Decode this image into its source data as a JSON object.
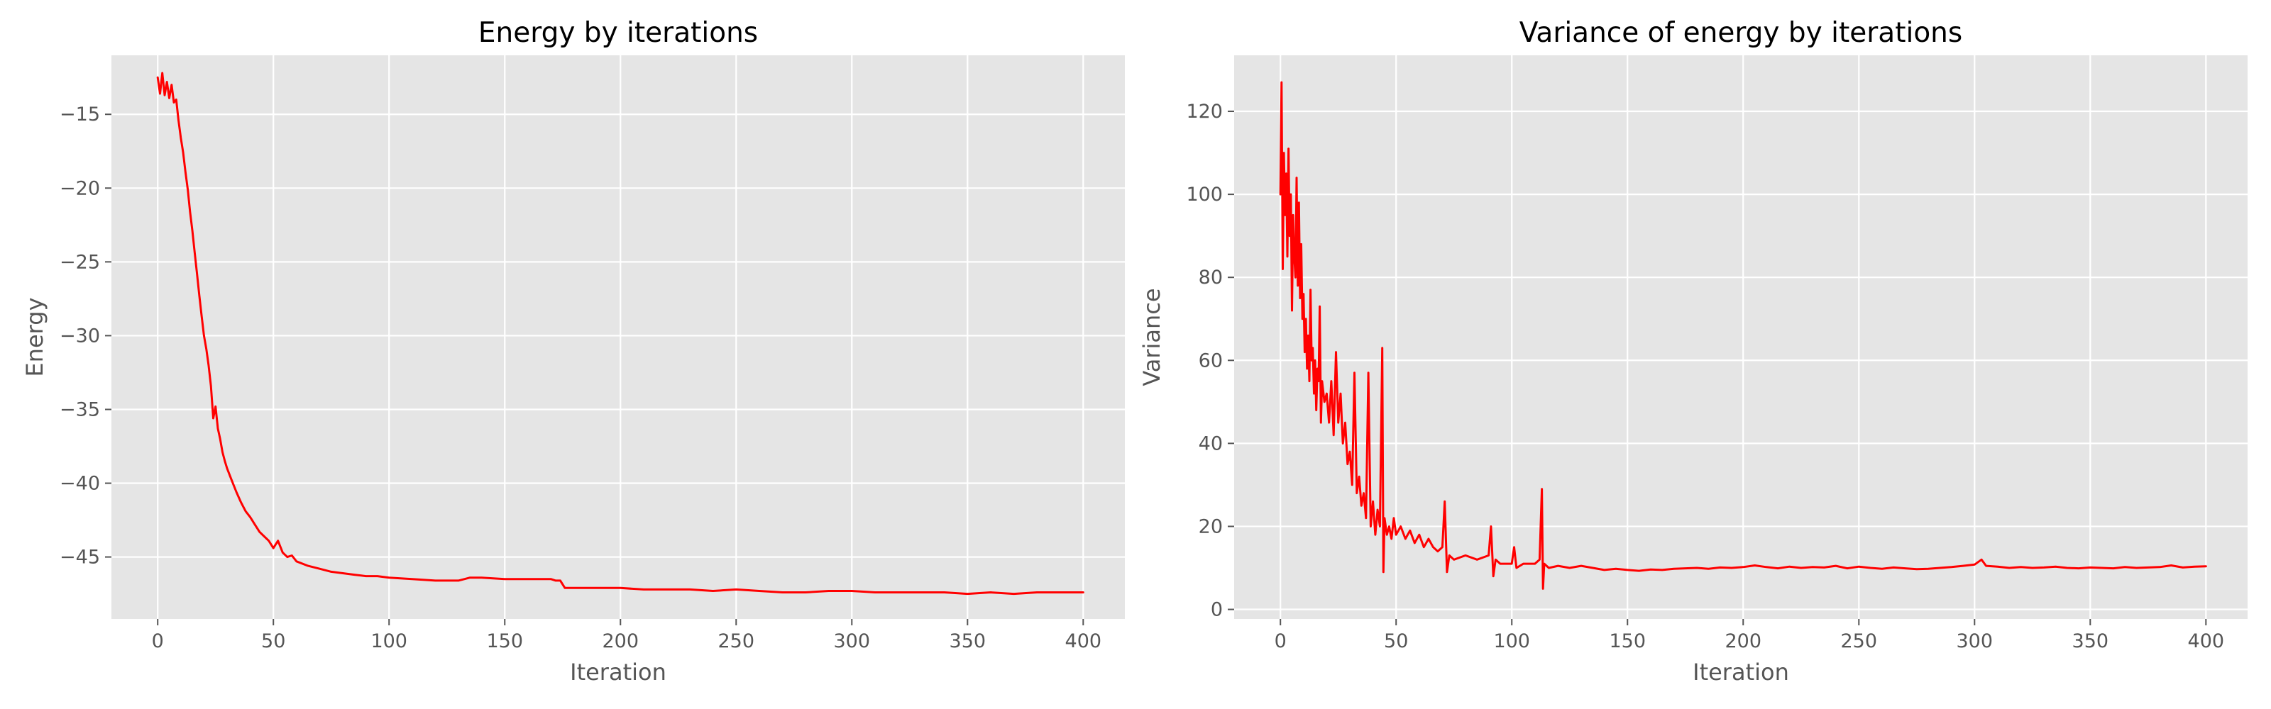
{
  "chart_data": [
    {
      "type": "line",
      "title": "Energy by iterations",
      "xlabel": "Iteration",
      "ylabel": "Energy",
      "xlim": [
        -20,
        418
      ],
      "ylim": [
        -49.2,
        -11.0
      ],
      "xticks": [
        0,
        50,
        100,
        150,
        200,
        250,
        300,
        350,
        400
      ],
      "yticks": [
        -15,
        -20,
        -25,
        -30,
        -35,
        -40,
        -45
      ],
      "grid": true,
      "series": [
        {
          "color": "#ff0000",
          "points": [
            [
              0,
              -12.5
            ],
            [
              1,
              -13.6
            ],
            [
              2,
              -12.2
            ],
            [
              3,
              -13.7
            ],
            [
              4,
              -12.8
            ],
            [
              5,
              -13.9
            ],
            [
              6,
              -13.0
            ],
            [
              7,
              -14.2
            ],
            [
              8,
              -14.0
            ],
            [
              9,
              -15.4
            ],
            [
              10,
              -16.6
            ],
            [
              11,
              -17.6
            ],
            [
              12,
              -18.9
            ],
            [
              13,
              -20.1
            ],
            [
              14,
              -21.6
            ],
            [
              15,
              -22.9
            ],
            [
              16,
              -24.4
            ],
            [
              17,
              -25.8
            ],
            [
              18,
              -27.3
            ],
            [
              19,
              -28.7
            ],
            [
              20,
              -30.0
            ],
            [
              21,
              -30.9
            ],
            [
              22,
              -32.0
            ],
            [
              23,
              -33.4
            ],
            [
              24,
              -35.6
            ],
            [
              25,
              -34.8
            ],
            [
              26,
              -36.3
            ],
            [
              27,
              -37.0
            ],
            [
              28,
              -37.9
            ],
            [
              29,
              -38.5
            ],
            [
              30,
              -39.0
            ],
            [
              32,
              -39.8
            ],
            [
              34,
              -40.6
            ],
            [
              36,
              -41.3
            ],
            [
              38,
              -41.9
            ],
            [
              40,
              -42.3
            ],
            [
              42,
              -42.8
            ],
            [
              44,
              -43.3
            ],
            [
              46,
              -43.6
            ],
            [
              48,
              -43.9
            ],
            [
              50,
              -44.4
            ],
            [
              52,
              -43.9
            ],
            [
              54,
              -44.7
            ],
            [
              56,
              -45.0
            ],
            [
              58,
              -44.9
            ],
            [
              60,
              -45.3
            ],
            [
              65,
              -45.6
            ],
            [
              70,
              -45.8
            ],
            [
              75,
              -46.0
            ],
            [
              80,
              -46.1
            ],
            [
              85,
              -46.2
            ],
            [
              90,
              -46.3
            ],
            [
              95,
              -46.3
            ],
            [
              100,
              -46.4
            ],
            [
              110,
              -46.5
            ],
            [
              120,
              -46.6
            ],
            [
              130,
              -46.6
            ],
            [
              135,
              -46.4
            ],
            [
              140,
              -46.4
            ],
            [
              150,
              -46.5
            ],
            [
              160,
              -46.5
            ],
            [
              170,
              -46.5
            ],
            [
              172,
              -46.6
            ],
            [
              174,
              -46.6
            ],
            [
              176,
              -47.1
            ],
            [
              180,
              -47.1
            ],
            [
              190,
              -47.1
            ],
            [
              200,
              -47.1
            ],
            [
              210,
              -47.2
            ],
            [
              220,
              -47.2
            ],
            [
              230,
              -47.2
            ],
            [
              240,
              -47.3
            ],
            [
              250,
              -47.2
            ],
            [
              260,
              -47.3
            ],
            [
              270,
              -47.4
            ],
            [
              280,
              -47.4
            ],
            [
              290,
              -47.3
            ],
            [
              300,
              -47.3
            ],
            [
              310,
              -47.4
            ],
            [
              320,
              -47.4
            ],
            [
              330,
              -47.4
            ],
            [
              340,
              -47.4
            ],
            [
              350,
              -47.5
            ],
            [
              360,
              -47.4
            ],
            [
              370,
              -47.5
            ],
            [
              380,
              -47.4
            ],
            [
              390,
              -47.4
            ],
            [
              400,
              -47.4
            ]
          ]
        }
      ]
    },
    {
      "type": "line",
      "title": "Variance of energy by iterations",
      "xlabel": "Iteration",
      "ylabel": "Variance",
      "xlim": [
        -20,
        418
      ],
      "ylim": [
        -2.3,
        133.5
      ],
      "xticks": [
        0,
        50,
        100,
        150,
        200,
        250,
        300,
        350,
        400
      ],
      "yticks": [
        0,
        20,
        40,
        60,
        80,
        100,
        120
      ],
      "grid": true,
      "series": [
        {
          "color": "#ff0000",
          "points": [
            [
              0,
              100
            ],
            [
              0.5,
              127
            ],
            [
              1,
              82
            ],
            [
              1.5,
              110
            ],
            [
              2,
              95
            ],
            [
              2.5,
              105
            ],
            [
              3,
              85
            ],
            [
              3.5,
              111
            ],
            [
              4,
              90
            ],
            [
              4.5,
              100
            ],
            [
              5,
              72
            ],
            [
              5.5,
              95
            ],
            [
              6,
              85
            ],
            [
              6.5,
              80
            ],
            [
              7,
              104
            ],
            [
              7.5,
              78
            ],
            [
              8,
              98
            ],
            [
              8.5,
              75
            ],
            [
              9,
              88
            ],
            [
              9.5,
              70
            ],
            [
              10,
              76
            ],
            [
              10.5,
              62
            ],
            [
              11,
              70
            ],
            [
              11.5,
              58
            ],
            [
              12,
              66
            ],
            [
              12.5,
              55
            ],
            [
              13,
              77
            ],
            [
              13.5,
              60
            ],
            [
              14,
              63
            ],
            [
              14.5,
              52
            ],
            [
              15,
              60
            ],
            [
              15.5,
              48
            ],
            [
              16,
              58
            ],
            [
              16.5,
              55
            ],
            [
              17,
              73
            ],
            [
              17.5,
              45
            ],
            [
              18,
              55
            ],
            [
              19,
              50
            ],
            [
              20,
              52
            ],
            [
              21,
              45
            ],
            [
              22,
              55
            ],
            [
              23,
              42
            ],
            [
              24,
              62
            ],
            [
              25,
              45
            ],
            [
              26,
              52
            ],
            [
              27,
              40
            ],
            [
              28,
              45
            ],
            [
              29,
              35
            ],
            [
              30,
              38
            ],
            [
              31,
              30
            ],
            [
              32,
              57
            ],
            [
              33,
              28
            ],
            [
              34,
              32
            ],
            [
              35,
              25
            ],
            [
              36,
              28
            ],
            [
              37,
              22
            ],
            [
              38,
              57
            ],
            [
              39,
              20
            ],
            [
              40,
              26
            ],
            [
              41,
              18
            ],
            [
              42,
              24
            ],
            [
              43,
              20
            ],
            [
              44,
              63
            ],
            [
              44.5,
              9
            ],
            [
              45,
              22
            ],
            [
              46,
              18
            ],
            [
              47,
              20
            ],
            [
              48,
              17
            ],
            [
              49,
              22
            ],
            [
              50,
              18
            ],
            [
              52,
              20
            ],
            [
              54,
              17
            ],
            [
              56,
              19
            ],
            [
              58,
              16
            ],
            [
              60,
              18
            ],
            [
              62,
              15
            ],
            [
              64,
              17
            ],
            [
              66,
              15
            ],
            [
              68,
              14
            ],
            [
              70,
              15
            ],
            [
              71,
              26
            ],
            [
              72,
              9
            ],
            [
              73,
              13
            ],
            [
              75,
              12
            ],
            [
              80,
              13
            ],
            [
              85,
              12
            ],
            [
              90,
              13
            ],
            [
              91,
              20
            ],
            [
              92,
              8
            ],
            [
              93,
              12
            ],
            [
              95,
              11
            ],
            [
              100,
              11
            ],
            [
              101,
              15
            ],
            [
              102,
              10
            ],
            [
              105,
              11
            ],
            [
              110,
              11
            ],
            [
              112,
              12
            ],
            [
              113,
              29
            ],
            [
              113.5,
              5
            ],
            [
              114,
              11
            ],
            [
              116,
              10
            ],
            [
              120,
              10.5
            ],
            [
              125,
              10
            ],
            [
              130,
              10.5
            ],
            [
              135,
              10
            ],
            [
              140,
              9.5
            ],
            [
              145,
              9.8
            ],
            [
              150,
              9.5
            ],
            [
              155,
              9.3
            ],
            [
              160,
              9.6
            ],
            [
              165,
              9.5
            ],
            [
              170,
              9.8
            ],
            [
              175,
              9.9
            ],
            [
              180,
              10
            ],
            [
              185,
              9.8
            ],
            [
              190,
              10.1
            ],
            [
              195,
              10
            ],
            [
              200,
              10.2
            ],
            [
              205,
              10.6
            ],
            [
              210,
              10.2
            ],
            [
              215,
              9.9
            ],
            [
              220,
              10.3
            ],
            [
              225,
              10
            ],
            [
              230,
              10.2
            ],
            [
              235,
              10.1
            ],
            [
              240,
              10.5
            ],
            [
              245,
              9.9
            ],
            [
              250,
              10.3
            ],
            [
              255,
              10
            ],
            [
              260,
              9.8
            ],
            [
              265,
              10.1
            ],
            [
              270,
              9.9
            ],
            [
              275,
              9.7
            ],
            [
              280,
              9.8
            ],
            [
              285,
              10
            ],
            [
              290,
              10.2
            ],
            [
              295,
              10.5
            ],
            [
              300,
              10.8
            ],
            [
              303,
              12
            ],
            [
              305,
              10.5
            ],
            [
              310,
              10.3
            ],
            [
              315,
              10
            ],
            [
              320,
              10.2
            ],
            [
              325,
              10
            ],
            [
              330,
              10.1
            ],
            [
              335,
              10.3
            ],
            [
              340,
              10
            ],
            [
              345,
              9.9
            ],
            [
              350,
              10.1
            ],
            [
              355,
              10
            ],
            [
              360,
              9.9
            ],
            [
              365,
              10.2
            ],
            [
              370,
              10
            ],
            [
              375,
              10.1
            ],
            [
              380,
              10.2
            ],
            [
              385,
              10.6
            ],
            [
              390,
              10.1
            ],
            [
              395,
              10.3
            ],
            [
              400,
              10.4
            ]
          ]
        }
      ]
    }
  ]
}
